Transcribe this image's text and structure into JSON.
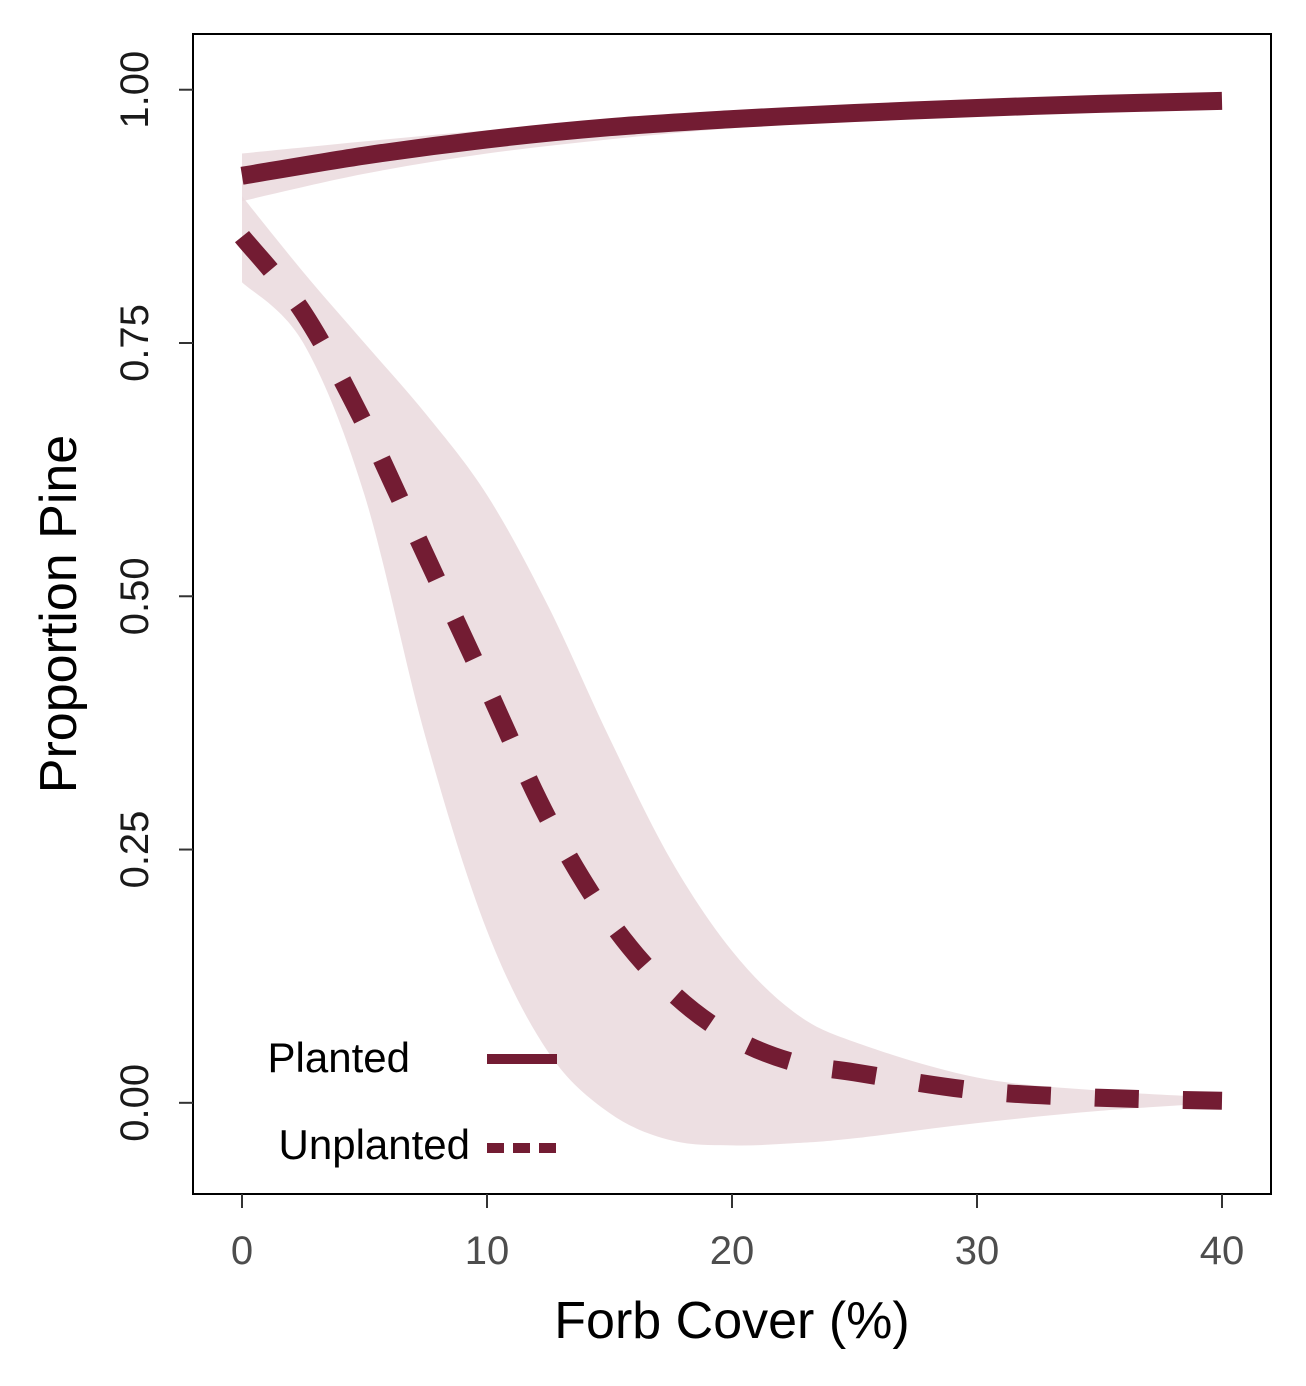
{
  "chart_data": {
    "type": "line",
    "xlabel": "Forb Cover (%)",
    "ylabel": "Proportion Pine",
    "xlim": [
      -2,
      42
    ],
    "ylim": [
      -0.09,
      1.055
    ],
    "x_ticks": [
      "0",
      "10",
      "20",
      "30",
      "40"
    ],
    "y_ticks": [
      "0.00",
      "0.25",
      "0.50",
      "0.75",
      "1.00"
    ],
    "grid": false,
    "legend_position": "bottom-left",
    "colors": {
      "line": "#731c33",
      "band": "#ead9dd"
    },
    "series": [
      {
        "name": "Planted",
        "style": "solid",
        "x": [
          0,
          5,
          10,
          15,
          20,
          25,
          30,
          35,
          40
        ],
        "y": [
          0.915,
          0.935,
          0.951,
          0.963,
          0.971,
          0.977,
          0.982,
          0.986,
          0.989
        ],
        "lower": [
          0.89,
          0.917,
          0.937,
          0.951,
          0.962,
          0.969,
          0.975,
          0.979,
          0.983
        ],
        "upper": [
          0.937,
          0.949,
          0.96,
          0.969,
          0.976,
          0.982,
          0.986,
          0.989,
          0.991
        ]
      },
      {
        "name": "Unplanted",
        "style": "dashed",
        "x": [
          0,
          2.5,
          5,
          7.5,
          10,
          12.5,
          15,
          17.5,
          20,
          22.5,
          25,
          30,
          35,
          40
        ],
        "y": [
          0.855,
          0.78,
          0.67,
          0.54,
          0.41,
          0.28,
          0.18,
          0.11,
          0.065,
          0.04,
          0.03,
          0.012,
          0.005,
          0.002
        ],
        "lower": [
          0.81,
          0.75,
          0.6,
          0.36,
          0.17,
          0.05,
          -0.01,
          -0.037,
          -0.042,
          -0.04,
          -0.035,
          -0.02,
          -0.008,
          0.0
        ],
        "upper": [
          0.895,
          0.82,
          0.75,
          0.68,
          0.6,
          0.49,
          0.36,
          0.24,
          0.15,
          0.09,
          0.06,
          0.025,
          0.012,
          0.005
        ]
      }
    ]
  }
}
